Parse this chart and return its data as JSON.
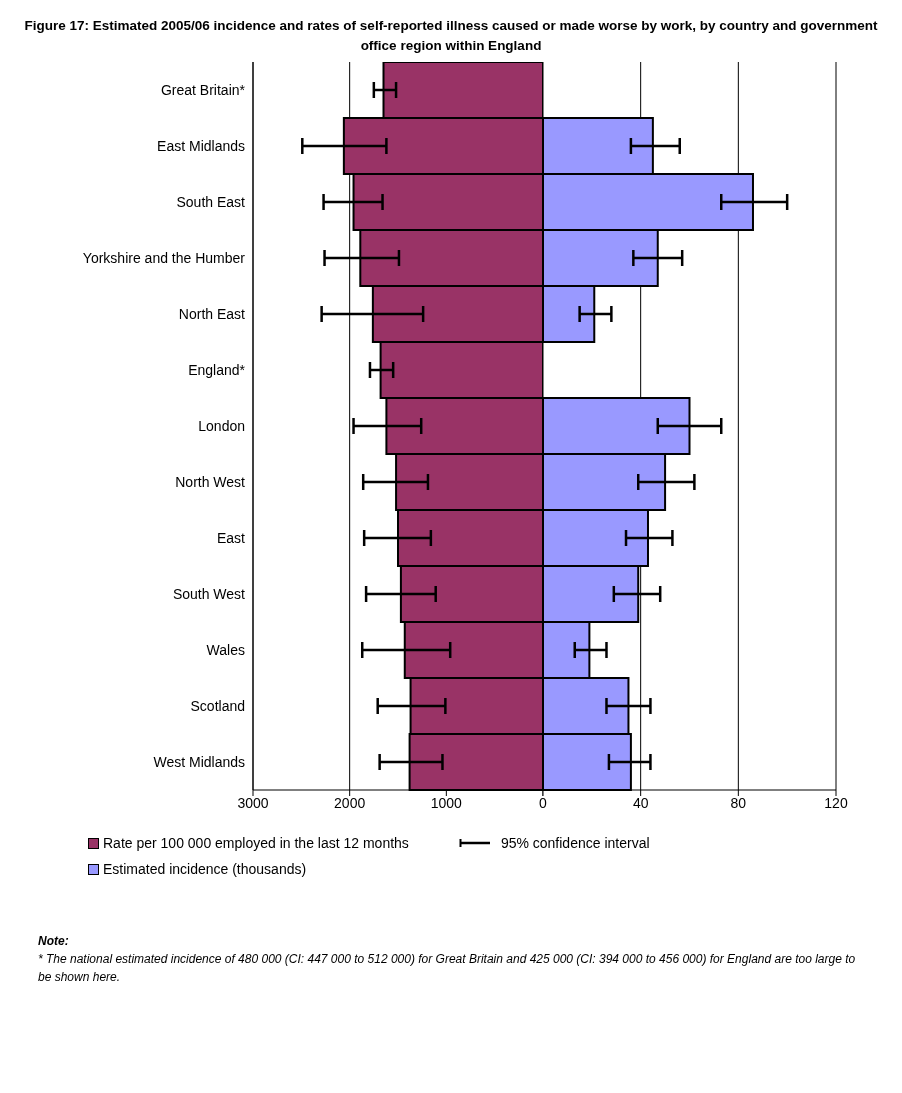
{
  "chart_data": [
    {
      "type": "bar",
      "orientation": "horizontal",
      "title": "Figure 17:  Estimated 2005/06 incidence and rates of self-reported illness caused or made worse by work, by country and government office region within England",
      "categories": [
        "Great Britain*",
        "East Midlands",
        "South East",
        "Yorkshire and the Humber",
        "North East",
        "England*",
        "London",
        "North West",
        "East",
        "South West",
        "Wales",
        "Scotland",
        "West Midlands"
      ],
      "series": [
        {
          "name": "Rate per 100 000 employed in the last 12 months",
          "color": "#993366",
          "values": [
            1650,
            2060,
            1960,
            1890,
            1760,
            1680,
            1620,
            1520,
            1500,
            1470,
            1430,
            1370,
            1380
          ],
          "errors": [
            [
              1520,
              1750
            ],
            [
              1620,
              2490
            ],
            [
              1660,
              2270
            ],
            [
              1490,
              2260
            ],
            [
              1240,
              2290
            ],
            [
              1550,
              1790
            ],
            [
              1260,
              1960
            ],
            [
              1190,
              1860
            ],
            [
              1160,
              1850
            ],
            [
              1110,
              1830
            ],
            [
              960,
              1870
            ],
            [
              1010,
              1710
            ],
            [
              1040,
              1690
            ]
          ]
        }
      ],
      "xlim": [
        3000,
        0
      ],
      "xticks": [
        3000,
        2000,
        1000,
        {
          "value": 0,
          "label": null
        }
      ],
      "grid": "x",
      "legend": "bottom",
      "annotations": [
        "Note:",
        "* The national estimated incidence of 480 000 (CI: 447 000 to 512 000) for Great Britain and 425 000 (CI: 394 000 to 456 000) for England are too large to be shown here."
      ]
    },
    {
      "type": "bar",
      "orientation": "horizontal",
      "categories": [
        null,
        null,
        null,
        null,
        null,
        null,
        null,
        null,
        null,
        null,
        null,
        null,
        null
      ],
      "series": [
        {
          "name": "Estimated incidence (thousands)",
          "color": "#9999ff",
          "values": [
            null,
            45,
            86,
            47,
            21,
            null,
            60,
            50,
            43,
            39,
            19,
            35,
            36
          ],
          "errors": [
            null,
            [
              36,
              56
            ],
            [
              73,
              100
            ],
            [
              37,
              57
            ],
            [
              15,
              28
            ],
            null,
            [
              47,
              73
            ],
            [
              39,
              62
            ],
            [
              34,
              53
            ],
            [
              29,
              48
            ],
            [
              13,
              26
            ],
            [
              26,
              44
            ],
            [
              27,
              44
            ]
          ]
        }
      ],
      "xlim": [
        0,
        120
      ],
      "xticks": [
        0,
        40,
        80,
        120
      ],
      "grid": "x",
      "legend": "bottom",
      "tick_labels": "x",
      "annotations": [
        "95% confidence interval"
      ]
    }
  ]
}
